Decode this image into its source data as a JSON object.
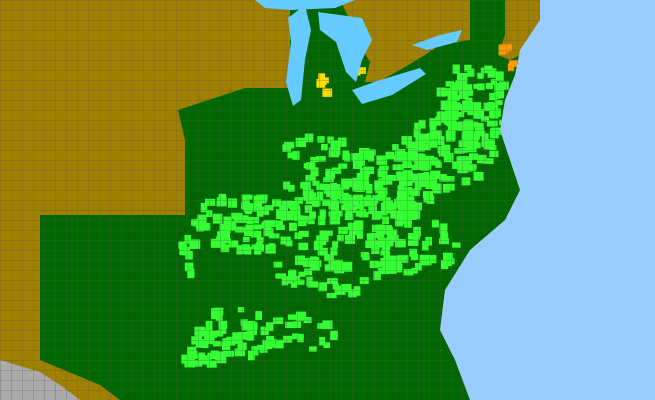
{
  "map": {
    "colors": {
      "ocean": "#99ccff",
      "lakes": "#66ccff",
      "outside_range": "#a08000",
      "native_state": "#006600",
      "county_present": "#33ff33",
      "county_yellow": "#ffdd00",
      "county_orange": "#ff9900",
      "foreign": "#aaaaaa",
      "county_lines": "#555555"
    }
  }
}
